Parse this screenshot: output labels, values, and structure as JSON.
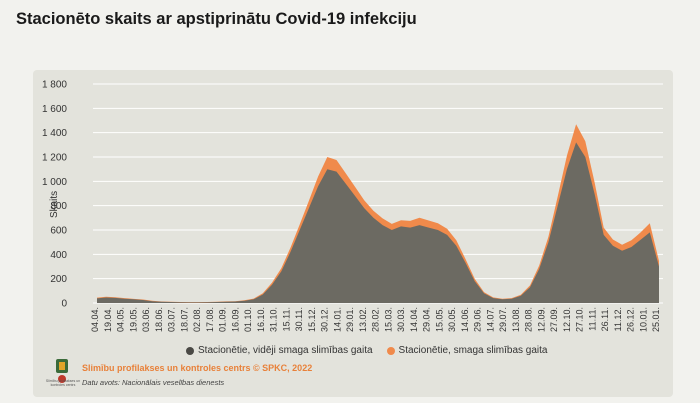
{
  "page": {
    "title": "Stacionēto skaits ar apstiprinātu Covid-19 infekciju"
  },
  "footer": {
    "credit": "Slimību profilakses un kontroles centrs © SPKC, 2022",
    "source": "Datu avots: Nacionālais veselības dienests",
    "logo_caption": "Slimību profilakses un kontroles centrs"
  },
  "colors": {
    "panel": "#e3e3dc",
    "dark_series": "#6c6a62",
    "orange_series": "#f08a4b",
    "grid": "#ffffff"
  },
  "chart_data": {
    "type": "area",
    "title": "Stacionēto skaits ar apstiprinātu Covid-19 infekciju",
    "xlabel": "",
    "ylabel": "Skaits",
    "ylim": [
      0,
      1800
    ],
    "yticks": [
      0,
      200,
      400,
      600,
      800,
      1000,
      1200,
      1400,
      1600,
      1800
    ],
    "ytick_labels": [
      "0",
      "200",
      "400",
      "600",
      "800",
      "1 000",
      "1 200",
      "1 400",
      "1 600",
      "1 800"
    ],
    "x_tick_labels": [
      "04.04.",
      "19.04.",
      "04.05.",
      "19.05.",
      "03.06.",
      "18.06.",
      "03.07.",
      "18.07.",
      "02.08.",
      "17.08.",
      "01.09.",
      "16.09.",
      "01.10.",
      "16.10.",
      "31.10.",
      "15.11.",
      "30.11.",
      "15.12.",
      "30.12.",
      "14.01.",
      "29.01.",
      "13.02.",
      "28.02.",
      "15.03.",
      "30.03.",
      "14.04.",
      "29.04.",
      "15.05.",
      "30.05.",
      "14.06.",
      "29.06.",
      "14.07.",
      "29.07.",
      "13.08.",
      "28.08.",
      "12.09.",
      "27.09.",
      "12.10.",
      "27.10.",
      "11.11.",
      "26.11.",
      "11.12.",
      "26.12.",
      "10.01.",
      "25.01."
    ],
    "legend": [
      "Stacionētie, vidēji smaga slimības gaita",
      "Stacionētie, smaga slimības gaita"
    ],
    "legend_position": "bottom",
    "series": [
      {
        "name": "Stacionētie, vidēji smaga slimības gaita",
        "color": "#6c6a62",
        "values": [
          38,
          45,
          42,
          35,
          30,
          25,
          15,
          10,
          8,
          6,
          5,
          5,
          6,
          8,
          10,
          12,
          18,
          30,
          70,
          150,
          260,
          420,
          600,
          780,
          960,
          1100,
          1080,
          980,
          880,
          780,
          700,
          640,
          600,
          630,
          620,
          640,
          620,
          600,
          560,
          470,
          330,
          180,
          80,
          40,
          30,
          35,
          60,
          130,
          280,
          500,
          800,
          1100,
          1320,
          1200,
          900,
          560,
          470,
          430,
          460,
          520,
          580,
          300
        ]
      },
      {
        "name": "Stacionētie, smaga slimības gaita",
        "color": "#f08a4b",
        "values": [
          6,
          6,
          5,
          5,
          4,
          4,
          3,
          2,
          2,
          2,
          2,
          2,
          2,
          2,
          3,
          3,
          4,
          6,
          10,
          18,
          25,
          35,
          45,
          60,
          80,
          100,
          95,
          85,
          75,
          65,
          58,
          55,
          50,
          50,
          55,
          60,
          58,
          55,
          50,
          45,
          32,
          20,
          10,
          6,
          5,
          5,
          8,
          15,
          28,
          45,
          75,
          110,
          150,
          130,
          95,
          60,
          52,
          48,
          55,
          60,
          75,
          45
        ]
      }
    ]
  }
}
